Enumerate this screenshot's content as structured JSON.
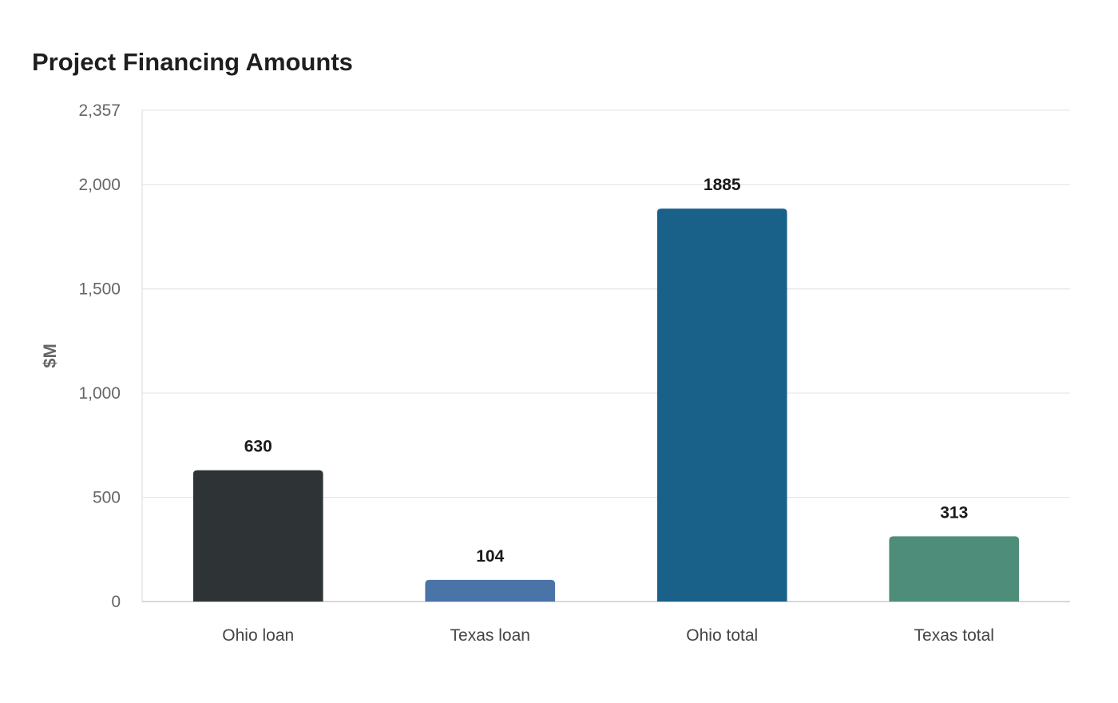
{
  "chart_data": {
    "type": "bar",
    "title": "Project Financing Amounts",
    "xlabel": "",
    "ylabel": "$M",
    "categories": [
      "Ohio loan",
      "Texas loan",
      "Ohio total",
      "Texas total"
    ],
    "values": [
      630,
      104,
      1885,
      313
    ],
    "value_labels": [
      "630",
      "104",
      "1885",
      "313"
    ],
    "colors": [
      "#2e3436",
      "#4a74a8",
      "#1a6189",
      "#4e8d7a"
    ],
    "ylim": [
      0,
      2357
    ],
    "yticks": [
      0,
      500,
      1000,
      1500,
      2000,
      2357
    ],
    "ytick_labels": [
      "0",
      "500",
      "1,000",
      "1,500",
      "2,000",
      "2,357"
    ],
    "grid": true,
    "legend": "none"
  }
}
